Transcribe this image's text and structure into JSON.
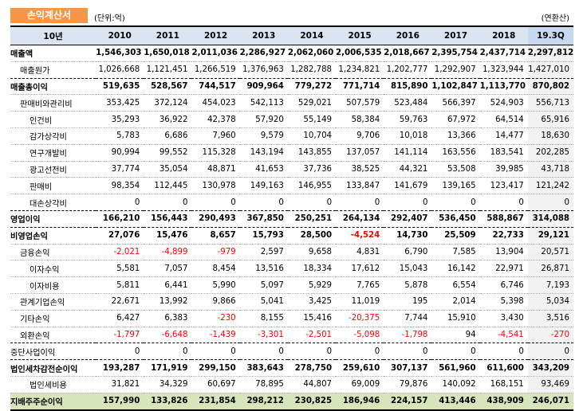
{
  "header": {
    "title": "손익계산서",
    "unit": "(단위:억)",
    "note": "(연환산)"
  },
  "table": {
    "columns": [
      "10년",
      "2010",
      "2011",
      "2012",
      "2013",
      "2014",
      "2015",
      "2016",
      "2017",
      "2018",
      "19.3Q"
    ],
    "rows": [
      {
        "label": "매출액",
        "level": 0,
        "bold": true,
        "values": [
          "1,546,303",
          "1,650,018",
          "2,011,036",
          "2,286,927",
          "2,062,060",
          "2,006,535",
          "2,018,667",
          "2,395,754",
          "2,437,714",
          "2,297,812"
        ]
      },
      {
        "label": "매출원가",
        "level": 1,
        "bold": false,
        "values": [
          "1,026,668",
          "1,121,451",
          "1,266,519",
          "1,376,963",
          "1,282,788",
          "1,234,821",
          "1,202,777",
          "1,292,907",
          "1,323,944",
          "1,427,010"
        ]
      },
      {
        "label": "매출총이익",
        "level": 0,
        "bold": true,
        "values": [
          "519,635",
          "528,567",
          "744,517",
          "909,964",
          "779,272",
          "771,714",
          "815,890",
          "1,102,847",
          "1,113,770",
          "870,802"
        ]
      },
      {
        "label": "판매비와관리비",
        "level": 1,
        "bold": false,
        "values": [
          "353,425",
          "372,124",
          "454,023",
          "542,113",
          "529,021",
          "507,579",
          "523,484",
          "566,397",
          "524,903",
          "556,713"
        ]
      },
      {
        "label": "인건비",
        "level": 2,
        "bold": false,
        "values": [
          "35,293",
          "36,922",
          "42,378",
          "57,920",
          "55,149",
          "58,384",
          "59,763",
          "67,972",
          "64,514",
          "65,916"
        ]
      },
      {
        "label": "감가상각비",
        "level": 2,
        "bold": false,
        "values": [
          "5,783",
          "6,686",
          "7,960",
          "9,579",
          "10,704",
          "9,706",
          "10,018",
          "13,366",
          "14,477",
          "18,630"
        ]
      },
      {
        "label": "연구개발비",
        "level": 2,
        "bold": false,
        "values": [
          "90,994",
          "99,552",
          "115,328",
          "143,194",
          "143,855",
          "137,057",
          "141,114",
          "163,556",
          "183,541",
          "202,285"
        ]
      },
      {
        "label": "광고선전비",
        "level": 2,
        "bold": false,
        "values": [
          "37,774",
          "35,054",
          "48,871",
          "41,653",
          "37,736",
          "38,525",
          "44,321",
          "53,508",
          "39,985",
          "43,718"
        ]
      },
      {
        "label": "판매비",
        "level": 2,
        "bold": false,
        "values": [
          "98,354",
          "112,445",
          "130,978",
          "149,163",
          "146,955",
          "133,847",
          "141,679",
          "139,165",
          "123,417",
          "121,242"
        ]
      },
      {
        "label": "대손상각비",
        "level": 2,
        "bold": false,
        "values": [
          "0",
          "0",
          "0",
          "0",
          "0",
          "0",
          "0",
          "0",
          "0",
          "0"
        ]
      },
      {
        "label": "영업이익",
        "level": 0,
        "bold": true,
        "values": [
          "166,210",
          "156,443",
          "290,493",
          "367,850",
          "250,251",
          "264,134",
          "292,407",
          "536,450",
          "588,867",
          "314,088"
        ]
      },
      {
        "label": "비영업손익",
        "level": 0,
        "bold": true,
        "values": [
          "27,076",
          "15,476",
          "8,657",
          "15,793",
          "28,500",
          "-4,524",
          "14,730",
          "25,509",
          "22,733",
          "29,121"
        ]
      },
      {
        "label": "금융손익",
        "level": 1,
        "bold": false,
        "values": [
          "-2,021",
          "-4,899",
          "-979",
          "2,597",
          "9,658",
          "4,831",
          "6,790",
          "7,585",
          "13,904",
          "20,571"
        ]
      },
      {
        "label": "이자수익",
        "level": 2,
        "bold": false,
        "values": [
          "5,581",
          "7,057",
          "8,454",
          "13,516",
          "18,334",
          "17,612",
          "15,043",
          "16,142",
          "22,971",
          "26,871"
        ]
      },
      {
        "label": "이자비용",
        "level": 2,
        "bold": false,
        "values": [
          "5,811",
          "6,441",
          "5,990",
          "5,097",
          "5,929",
          "7,765",
          "5,878",
          "6,554",
          "6,746",
          "7,193"
        ]
      },
      {
        "label": "관계기업손익",
        "level": 1,
        "bold": false,
        "values": [
          "22,671",
          "13,992",
          "9,866",
          "5,041",
          "3,425",
          "11,019",
          "195",
          "2,014",
          "5,398",
          "5,034"
        ]
      },
      {
        "label": "기타손익",
        "level": 1,
        "bold": false,
        "values": [
          "6,427",
          "6,383",
          "-230",
          "8,155",
          "15,416",
          "-20,375",
          "7,744",
          "15,910",
          "3,430",
          "3,516"
        ]
      },
      {
        "label": "외환손익",
        "level": 1,
        "bold": false,
        "values": [
          "-1,797",
          "-6,648",
          "-1,439",
          "-3,301",
          "-2,501",
          "-5,098",
          "-1,798",
          "94",
          "-4,541",
          "-270"
        ]
      },
      {
        "label": "중단사업이익",
        "level": 0,
        "bold": false,
        "values": [
          "0",
          "0",
          "0",
          "0",
          "0",
          "0",
          "0",
          "0",
          "0",
          "0"
        ]
      },
      {
        "label": "법인세차감전순이익",
        "level": 0,
        "bold": true,
        "values": [
          "193,287",
          "171,919",
          "299,150",
          "383,643",
          "278,750",
          "259,610",
          "307,137",
          "561,960",
          "611,600",
          "343,209"
        ]
      },
      {
        "label": "법인세비용",
        "level": 2,
        "bold": false,
        "values": [
          "31,821",
          "34,329",
          "60,697",
          "78,895",
          "44,807",
          "69,009",
          "79,876",
          "140,092",
          "168,151",
          "93,469"
        ]
      },
      {
        "label": "지배주주순이익",
        "level": 0,
        "bold": true,
        "values": [
          "157,990",
          "133,826",
          "231,854",
          "298,212",
          "230,825",
          "186,946",
          "224,157",
          "413,446",
          "438,909",
          "246,071"
        ]
      }
    ]
  },
  "colors": {
    "title_bg": "#f79646",
    "header_bg": "#dbe5f1",
    "total_row_bg": "#d8e4bc",
    "negative": "#ff0000"
  }
}
